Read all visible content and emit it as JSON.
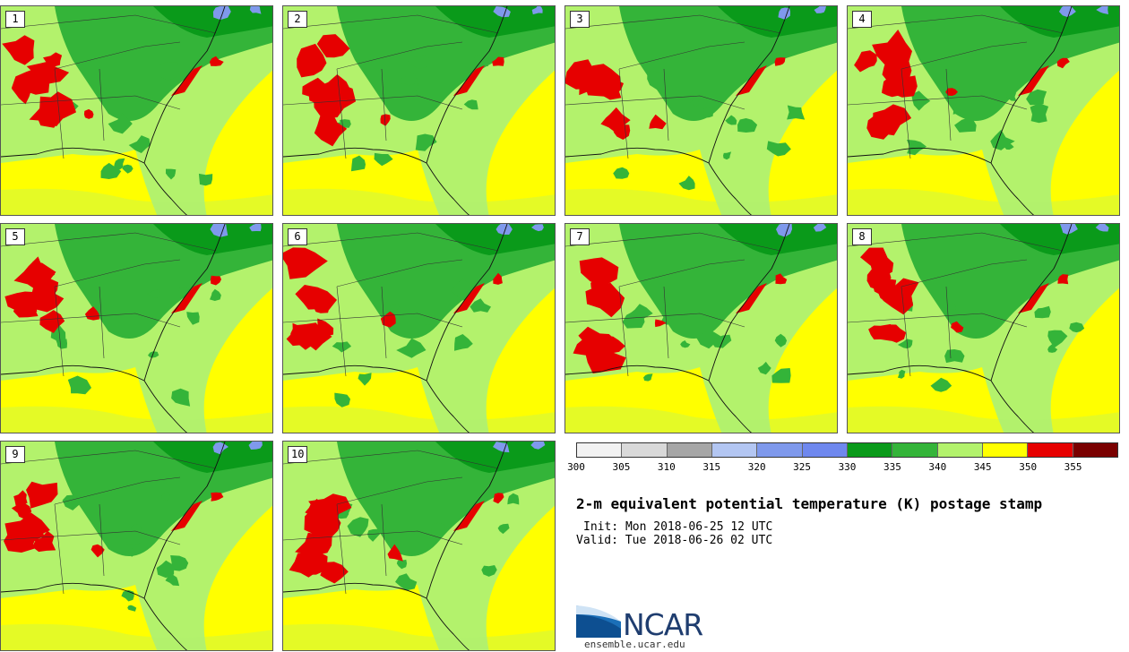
{
  "panels": [
    {
      "label": "1"
    },
    {
      "label": "2"
    },
    {
      "label": "3"
    },
    {
      "label": "4"
    },
    {
      "label": "5"
    },
    {
      "label": "6"
    },
    {
      "label": "7"
    },
    {
      "label": "8"
    },
    {
      "label": "9"
    },
    {
      "label": "10"
    }
  ],
  "colorbar": {
    "ticks": [
      "300",
      "305",
      "310",
      "315",
      "320",
      "325",
      "330",
      "335",
      "340",
      "345",
      "350",
      "355"
    ],
    "colors": [
      "#f2f2f2",
      "#d9d9d9",
      "#a6a6a6",
      "#b3c6f2",
      "#7f99ec",
      "#6f88ee",
      "#0a9a1a",
      "#34b439",
      "#b3f26c",
      "#ffff00",
      "#e60000",
      "#7a0000"
    ]
  },
  "title": "2-m equivalent potential temperature (K) postage stamp",
  "init": "Init: Mon 2018-06-25 12 UTC",
  "valid": "Valid: Tue 2018-06-26 02 UTC",
  "logo": {
    "name": "NCAR"
  },
  "site": "ensemble.ucar.edu"
}
